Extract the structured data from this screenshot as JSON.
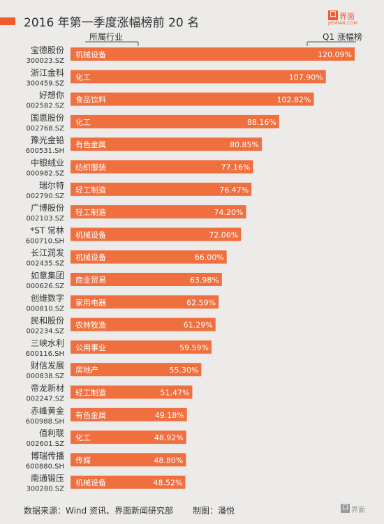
{
  "title": "2016 年第一季度涨幅榜前 20 名",
  "logo": {
    "mark": "口",
    "cn": "界面",
    "en": "JIEMIAN.COM"
  },
  "headers": {
    "industry": "所属行业",
    "q1": "Q1 涨幅榜"
  },
  "footer": {
    "source": "数据来源：Wind 资讯、界面新闻研究部",
    "author": "制图：潘悦"
  },
  "footer_logo": {
    "mark": "口",
    "cn": "界面"
  },
  "colors": {
    "bar": "#ef6f3f",
    "accent": "#ef5b2f",
    "background": "#ecebe9",
    "text": "#333333"
  },
  "chart_data": {
    "type": "bar",
    "orientation": "horizontal",
    "value_unit": "%",
    "rows": [
      {
        "name": "宝德股份",
        "code": "300023.SZ",
        "industry": "机械设备",
        "value": 120.09,
        "label": "120.09%"
      },
      {
        "name": "浙江金科",
        "code": "300459.SZ",
        "industry": "化工",
        "value": 107.9,
        "label": "107.90%"
      },
      {
        "name": "好想你",
        "code": "002582.SZ",
        "industry": "食品饮料",
        "value": 102.82,
        "label": "102.82%"
      },
      {
        "name": "国恩股份",
        "code": "002768.SZ",
        "industry": "化工",
        "value": 88.16,
        "label": "88.16%"
      },
      {
        "name": "豫光金铅",
        "code": "600531.SH",
        "industry": "有色金属",
        "value": 80.85,
        "label": "80.85%"
      },
      {
        "name": "中银绒业",
        "code": "000982.SZ",
        "industry": "纺织服装",
        "value": 77.16,
        "label": "77.16%"
      },
      {
        "name": "瑞尔特",
        "code": "002790.SZ",
        "industry": "轻工制造",
        "value": 76.47,
        "label": "76.47%"
      },
      {
        "name": "广博股份",
        "code": "002103.SZ",
        "industry": "轻工制造",
        "value": 74.2,
        "label": "74.20%"
      },
      {
        "name": "*ST 常林",
        "code": "600710.SH",
        "industry": "机械设备",
        "value": 72.06,
        "label": "72.06%"
      },
      {
        "name": "长江润发",
        "code": "002435.SZ",
        "industry": "机械设备",
        "value": 66.0,
        "label": "66.00%"
      },
      {
        "name": "如意集团",
        "code": "000626.SZ",
        "industry": "商业贸易",
        "value": 63.98,
        "label": "63.98%"
      },
      {
        "name": "创维数字",
        "code": "000810.SZ",
        "industry": "家用电器",
        "value": 62.59,
        "label": "62.59%"
      },
      {
        "name": "民和股份",
        "code": "002234.SZ",
        "industry": "农林牧渔",
        "value": 61.29,
        "label": "61.29%"
      },
      {
        "name": "三峡水利",
        "code": "600116.SH",
        "industry": "公用事业",
        "value": 59.59,
        "label": "59.59%"
      },
      {
        "name": "财信发展",
        "code": "000838.SZ",
        "industry": "房地产",
        "value": 55.3,
        "label": "55.30%"
      },
      {
        "name": "帝龙新材",
        "code": "002247.SZ",
        "industry": "轻工制造",
        "value": 51.47,
        "label": "51.47%"
      },
      {
        "name": "赤峰黄金",
        "code": "600988.SH",
        "industry": "有色金属",
        "value": 49.18,
        "label": "49.18%"
      },
      {
        "name": "佰利联",
        "code": "002601.SZ",
        "industry": "化工",
        "value": 48.92,
        "label": "48.92%"
      },
      {
        "name": "博瑞传播",
        "code": "600880.SH",
        "industry": "传媒",
        "value": 48.8,
        "label": "48.80%"
      },
      {
        "name": "南通锻压",
        "code": "300280.SZ",
        "industry": "机械设备",
        "value": 48.52,
        "label": "48.52%"
      }
    ]
  }
}
